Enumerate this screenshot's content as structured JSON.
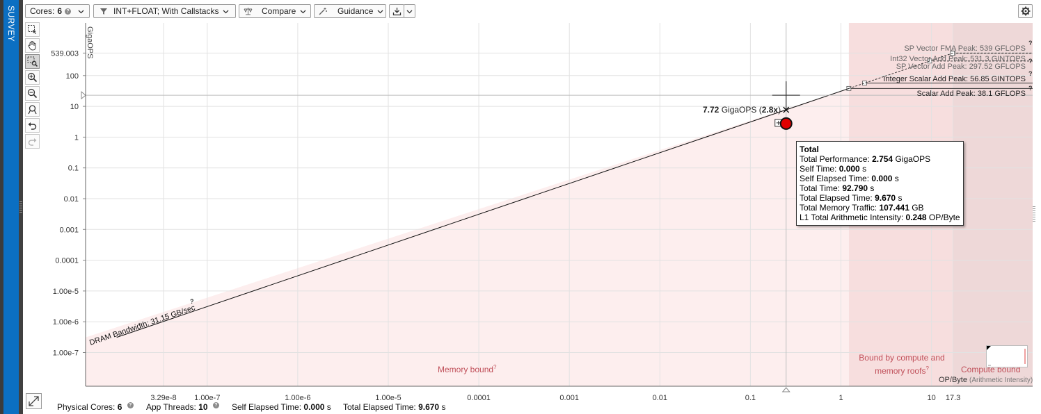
{
  "side_tab": {
    "label": "SURVEY"
  },
  "toolbar": {
    "cores_label": "Cores:",
    "cores_value": "6",
    "filter_label": "INT+FLOAT; With Callstacks",
    "compare_label": "Compare",
    "guidance_label": "Guidance"
  },
  "chart_data": {
    "type": "scatter",
    "title": "",
    "x_scale": "log",
    "y_scale": "log",
    "ylabel": "GigaOPS",
    "xlabel": "OP/Byte",
    "xlabel_note": "(Arithmetic Intensity)",
    "grid": true,
    "xlim": [
      1e-08,
      200
    ],
    "ylim": [
      1e-08,
      1000
    ],
    "x_ticks": [
      "3.29e-8",
      "1.00e-7",
      "1.00e-6",
      "1.00e-5",
      "0.0001",
      "0.001",
      "0.01",
      "0.1",
      "1",
      "10",
      "17.3"
    ],
    "y_ticks": [
      "539.003",
      "100",
      "10",
      "1",
      "0.1",
      "0.01",
      "0.001",
      "0.0001",
      "1.00e-5",
      "1.00e-6",
      "1.00e-7"
    ],
    "roofs": [
      {
        "label": "SP Vector FMA Peak: 539 GFLOPS",
        "value": 539,
        "unit": "GFLOPS"
      },
      {
        "label": "Int32 Vector Add Peak: 531.3 GINTOPS",
        "value": 531.3,
        "unit": "GINTOPS"
      },
      {
        "label": "SP Vector Add Peak: 297.52 GFLOPS",
        "value": 297.52,
        "unit": "GFLOPS"
      },
      {
        "label": "Integer Scalar Add Peak: 56.85 GINTOPS",
        "value": 56.85,
        "unit": "GINTOPS"
      },
      {
        "label": "Scalar Add Peak: 38.1 GFLOPS",
        "value": 38.1,
        "unit": "GFLOPS"
      }
    ],
    "bandwidth_roofs": [
      {
        "label": "DRAM Bandwidth: 31.15 GB/sec",
        "value": 31.15
      }
    ],
    "regions": [
      "Memory bound",
      "Bound by compute and memory roofs",
      "Compute bound"
    ],
    "points": [
      {
        "name": "Total",
        "x": 0.248,
        "y": 2.754,
        "color": "#e00000"
      }
    ],
    "crosshair": {
      "x": 0.248,
      "y": 7.72,
      "label_value": "7.72",
      "label_unit": "GigaOPS",
      "label_ratio": "2.8x"
    },
    "colors": {
      "memory_region": "#fdeeee",
      "mixed_region": "#f7dede",
      "compute_region": "#eed8d8",
      "region_text": "#c0505a"
    }
  },
  "tooltip": {
    "title": "Total",
    "rows": [
      {
        "label": "Total Performance:",
        "value": "2.754",
        "unit": "GigaOPS"
      },
      {
        "label": "Self Time:",
        "value": "0.000",
        "unit": "s"
      },
      {
        "label": "Self Elapsed Time:",
        "value": "0.000",
        "unit": "s"
      },
      {
        "label": "Total Time:",
        "value": "92.790",
        "unit": "s"
      },
      {
        "label": "Total Elapsed Time:",
        "value": "9.670",
        "unit": "s"
      },
      {
        "label": "Total Memory Traffic:",
        "value": "107.441",
        "unit": "GB"
      },
      {
        "label": "L1 Total Arithmetic Intensity:",
        "value": "0.248",
        "unit": "OP/Byte"
      }
    ]
  },
  "status_bar": {
    "physical_cores_label": "Physical Cores:",
    "physical_cores_value": "6",
    "app_threads_label": "App Threads:",
    "app_threads_value": "10",
    "self_elapsed_label": "Self Elapsed Time:",
    "self_elapsed_value": "0.000",
    "self_elapsed_unit": "s",
    "total_elapsed_label": "Total Elapsed Time:",
    "total_elapsed_value": "9.670",
    "total_elapsed_unit": "s"
  },
  "icons": [
    "settings-gear-icon",
    "filter-icon",
    "compare-scale-icon",
    "guidance-wand-icon",
    "export-icon",
    "select-region-icon",
    "pan-hand-icon",
    "zoom-region-icon",
    "zoom-in-icon",
    "zoom-out-icon",
    "fit-view-icon",
    "undo-icon",
    "redo-icon",
    "expand-icon",
    "help-icon"
  ]
}
